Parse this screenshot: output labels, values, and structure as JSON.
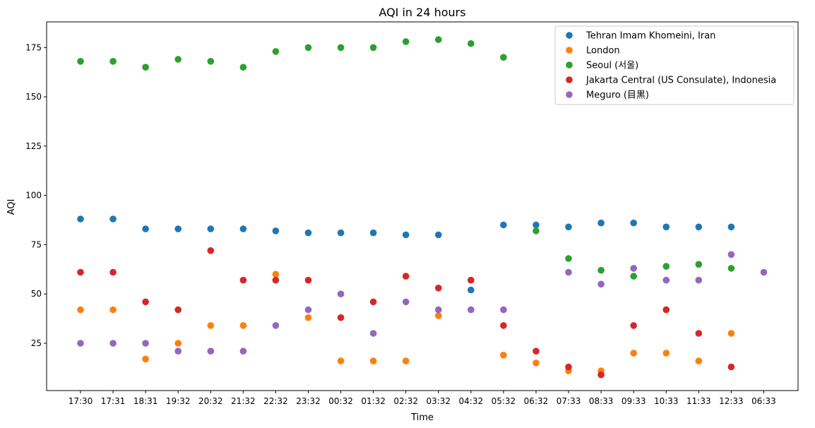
{
  "chart_data": {
    "type": "scatter",
    "title": "AQI in 24 hours",
    "xlabel": "Time",
    "ylabel": "AQI",
    "categories": [
      "17:30",
      "17:31",
      "18:31",
      "19:32",
      "20:32",
      "21:32",
      "22:32",
      "23:32",
      "00:32",
      "01:32",
      "02:32",
      "03:32",
      "04:32",
      "05:32",
      "06:32",
      "07:33",
      "08:33",
      "09:33",
      "10:33",
      "11:33",
      "12:33",
      "06:33"
    ],
    "ylim": [
      1,
      188
    ],
    "yticks": [
      25,
      50,
      75,
      100,
      125,
      150,
      175
    ],
    "grid": false,
    "legend_position": "top-right",
    "series": [
      {
        "name": "Tehran Imam Khomeini, Iran",
        "color": "#1f77b4",
        "points": [
          [
            "17:30",
            88
          ],
          [
            "17:31",
            88
          ],
          [
            "18:31",
            83
          ],
          [
            "19:32",
            83
          ],
          [
            "20:32",
            83
          ],
          [
            "21:32",
            83
          ],
          [
            "22:32",
            82
          ],
          [
            "23:32",
            81
          ],
          [
            "00:32",
            81
          ],
          [
            "01:32",
            81
          ],
          [
            "02:32",
            80
          ],
          [
            "03:32",
            80
          ],
          [
            "04:32",
            52
          ],
          [
            "05:32",
            85
          ],
          [
            "06:32",
            85
          ],
          [
            "07:33",
            84
          ],
          [
            "08:33",
            86
          ],
          [
            "09:33",
            86
          ],
          [
            "10:33",
            84
          ],
          [
            "11:33",
            84
          ],
          [
            "12:33",
            84
          ]
        ]
      },
      {
        "name": "London",
        "color": "#ff7f0e",
        "points": [
          [
            "17:30",
            42
          ],
          [
            "17:31",
            42
          ],
          [
            "18:31",
            17
          ],
          [
            "19:32",
            25
          ],
          [
            "20:32",
            34
          ],
          [
            "21:32",
            34
          ],
          [
            "22:32",
            60
          ],
          [
            "23:32",
            38
          ],
          [
            "00:32",
            16
          ],
          [
            "01:32",
            16
          ],
          [
            "02:32",
            16
          ],
          [
            "03:32",
            39
          ],
          [
            "05:32",
            19
          ],
          [
            "06:32",
            15
          ],
          [
            "07:33",
            11
          ],
          [
            "08:33",
            11
          ],
          [
            "09:33",
            20
          ],
          [
            "10:33",
            20
          ],
          [
            "11:33",
            16
          ],
          [
            "12:33",
            30
          ]
        ]
      },
      {
        "name": "Seoul (서울)",
        "color": "#2ca02c",
        "points": [
          [
            "17:30",
            168
          ],
          [
            "17:31",
            168
          ],
          [
            "18:31",
            165
          ],
          [
            "19:32",
            169
          ],
          [
            "20:32",
            168
          ],
          [
            "21:32",
            165
          ],
          [
            "22:32",
            173
          ],
          [
            "23:32",
            175
          ],
          [
            "00:32",
            175
          ],
          [
            "01:32",
            175
          ],
          [
            "02:32",
            178
          ],
          [
            "03:32",
            179
          ],
          [
            "04:32",
            177
          ],
          [
            "05:32",
            170
          ],
          [
            "06:32",
            82
          ],
          [
            "07:33",
            68
          ],
          [
            "08:33",
            62
          ],
          [
            "09:33",
            59
          ],
          [
            "10:33",
            64
          ],
          [
            "11:33",
            65
          ],
          [
            "12:33",
            63
          ]
        ]
      },
      {
        "name": "Jakarta Central (US Consulate), Indonesia",
        "color": "#d62728",
        "points": [
          [
            "17:30",
            61
          ],
          [
            "17:31",
            61
          ],
          [
            "18:31",
            46
          ],
          [
            "19:32",
            42
          ],
          [
            "20:32",
            72
          ],
          [
            "21:32",
            57
          ],
          [
            "22:32",
            57
          ],
          [
            "23:32",
            57
          ],
          [
            "00:32",
            38
          ],
          [
            "01:32",
            46
          ],
          [
            "02:32",
            59
          ],
          [
            "03:32",
            53
          ],
          [
            "04:32",
            57
          ],
          [
            "05:32",
            34
          ],
          [
            "06:32",
            21
          ],
          [
            "07:33",
            13
          ],
          [
            "08:33",
            9
          ],
          [
            "09:33",
            34
          ],
          [
            "10:33",
            42
          ],
          [
            "11:33",
            30
          ],
          [
            "12:33",
            13
          ]
        ]
      },
      {
        "name": "Meguro (目黒)",
        "color": "#9467bd",
        "points": [
          [
            "17:30",
            25
          ],
          [
            "17:31",
            25
          ],
          [
            "18:31",
            25
          ],
          [
            "19:32",
            21
          ],
          [
            "20:32",
            21
          ],
          [
            "21:32",
            21
          ],
          [
            "22:32",
            34
          ],
          [
            "23:32",
            42
          ],
          [
            "00:32",
            50
          ],
          [
            "01:32",
            30
          ],
          [
            "02:32",
            46
          ],
          [
            "03:32",
            42
          ],
          [
            "04:32",
            42
          ],
          [
            "05:32",
            42
          ],
          [
            "07:33",
            61
          ],
          [
            "08:33",
            55
          ],
          [
            "09:33",
            63
          ],
          [
            "10:33",
            57
          ],
          [
            "11:33",
            57
          ],
          [
            "12:33",
            70
          ],
          [
            "06:33",
            61
          ]
        ]
      }
    ]
  }
}
